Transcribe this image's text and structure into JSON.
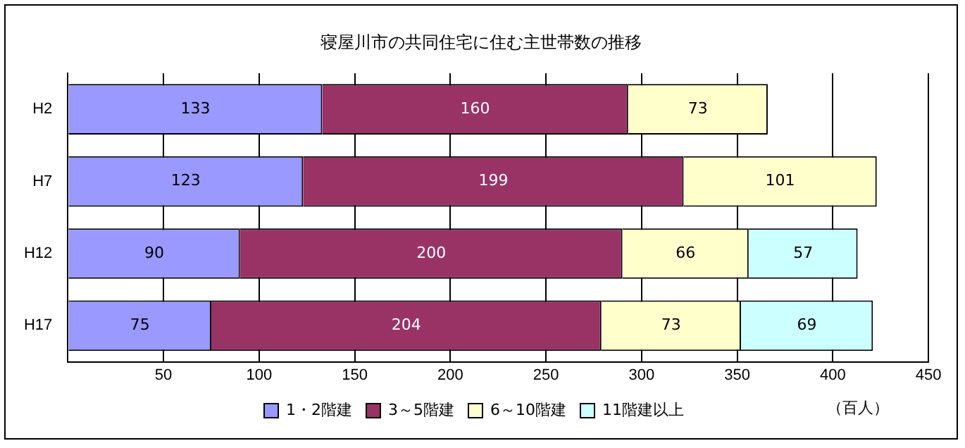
{
  "chart_data": {
    "type": "bar",
    "orientation": "horizontal",
    "stacked": true,
    "title": "寝屋川市の共同住宅に住む主世帯数の推移",
    "xlabel": "（百人）",
    "categories": [
      "H2",
      "H7",
      "H12",
      "H17"
    ],
    "series": [
      {
        "name": "1・2階建",
        "color": "#9999ff",
        "values": [
          133,
          123,
          90,
          75
        ]
      },
      {
        "name": "3～5階建",
        "color": "#993366",
        "values": [
          160,
          199,
          200,
          204
        ]
      },
      {
        "name": "6～10階建",
        "color": "#ffffcc",
        "values": [
          73,
          101,
          66,
          73
        ]
      },
      {
        "name": "11階建以上",
        "color": "#ccffff",
        "values": [
          null,
          null,
          57,
          69
        ]
      }
    ],
    "xlim": [
      0,
      450
    ],
    "xticks": [
      {
        "value": 0,
        "label": null
      },
      50,
      100,
      150,
      200,
      250,
      300,
      350,
      400,
      450
    ],
    "grid": "x",
    "legend": "bottom",
    "data_labels": true
  }
}
